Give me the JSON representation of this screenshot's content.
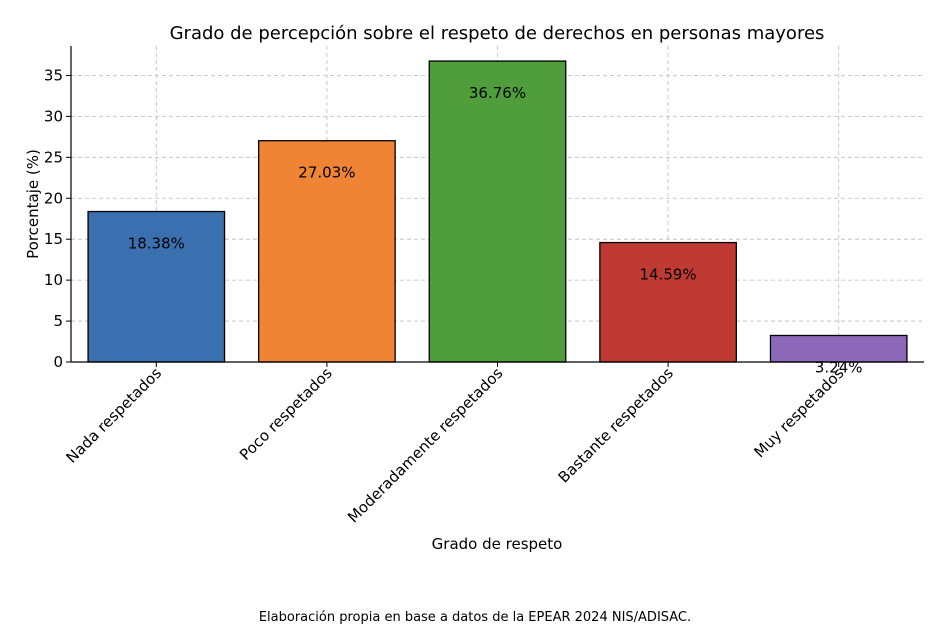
{
  "chart_data": {
    "type": "bar",
    "title": "Grado de percepción sobre el respeto de derechos en personas mayores",
    "xlabel": "Grado de respeto",
    "ylabel": "Porcentaje (%)",
    "categories": [
      "Nada respetados",
      "Poco respetados",
      "Moderadamente respetados",
      "Bastante respetados",
      "Muy respetados"
    ],
    "values": [
      18.38,
      27.03,
      36.76,
      14.59,
      3.24
    ],
    "data_labels": [
      "18.38%",
      "27.03%",
      "36.76%",
      "14.59%",
      "3.24%"
    ],
    "colors": [
      "#3a70b0",
      "#ee8434",
      "#4f9e3b",
      "#c03a34",
      "#8c69b8"
    ],
    "ylim": [
      0,
      38.6
    ],
    "yticks": [
      0,
      5,
      10,
      15,
      20,
      25,
      30,
      35
    ],
    "grid": true,
    "legend": "none"
  },
  "caption": "Elaboración propia en base a datos de la EPEAR 2024 NIS/ADISAC."
}
